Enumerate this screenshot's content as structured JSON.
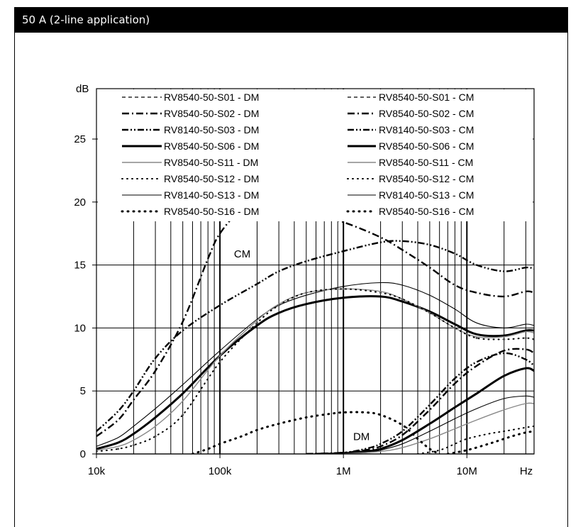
{
  "header": {
    "title": "50 A (2-line application)"
  },
  "chart_data": {
    "type": "line",
    "title": "50 A (2-line application)",
    "xlabel": "Hz",
    "ylabel": "dB",
    "xscale": "log",
    "xlim": [
      10000,
      35000000
    ],
    "ylim": [
      0,
      29
    ],
    "grid": true,
    "legend_position": "top",
    "x_tick_labels": [
      "10k",
      "100k",
      "1M",
      "10M"
    ],
    "x_tick_values": [
      10000,
      100000,
      1000000,
      10000000
    ],
    "y_tick_labels": [
      "0",
      "5",
      "10",
      "15",
      "20",
      "25"
    ],
    "y_tick_values": [
      0,
      5,
      10,
      15,
      20,
      25
    ],
    "annotations": [
      {
        "text": "CM",
        "x": 130000,
        "y": 15.6
      },
      {
        "text": "DM",
        "x": 1200000,
        "y": 1.1
      }
    ],
    "legend": [
      {
        "name": "RV8540-50-S01 - DM",
        "style": "dash"
      },
      {
        "name": "RV8540-50-S01 - CM",
        "style": "dash"
      },
      {
        "name": "RV8540-50-S02 - DM",
        "style": "dashdot"
      },
      {
        "name": "RV8540-50-S02 - CM",
        "style": "dashdot"
      },
      {
        "name": "RV8140-50-S03 - DM",
        "style": "dashdotdot"
      },
      {
        "name": "RV8140-50-S03 - CM",
        "style": "dashdotdot"
      },
      {
        "name": "RV8540-50-S06 - DM",
        "style": "thick"
      },
      {
        "name": "RV8540-50-S06 - CM",
        "style": "thick"
      },
      {
        "name": "RV8540-50-S11 - DM",
        "style": "gray"
      },
      {
        "name": "RV8540-50-S11 - CM",
        "style": "gray"
      },
      {
        "name": "RV8540-50-S12 - DM",
        "style": "dotted"
      },
      {
        "name": "RV8540-50-S12 - CM",
        "style": "dotted"
      },
      {
        "name": "RV8140-50-S13 - DM",
        "style": "thin"
      },
      {
        "name": "RV8140-50-S13 - CM",
        "style": "thin"
      },
      {
        "name": "RV8540-50-S16 - DM",
        "style": "bigdots"
      },
      {
        "name": "RV8540-50-S16 - CM",
        "style": "bigdots"
      }
    ],
    "series": [
      {
        "name": "RV8540-50-S02 - CM",
        "style": "dashdot",
        "x": [
          10000,
          15000,
          20000,
          30000,
          50000,
          80000,
          100000,
          150000,
          200000,
          300000,
          500000,
          1000000,
          2000000,
          3000000,
          5000000,
          8000000,
          12000000,
          20000000,
          30000000,
          35000000
        ],
        "y": [
          1.4,
          2.7,
          4.3,
          6.6,
          10.5,
          15.5,
          17.5,
          19.5,
          20.0,
          19.8,
          19.2,
          18.4,
          17.2,
          16.2,
          14.8,
          13.4,
          12.8,
          12.5,
          12.9,
          12.8
        ]
      },
      {
        "name": "RV8140-50-S03 - CM",
        "style": "dashdotdot",
        "x": [
          10000,
          15000,
          20000,
          30000,
          50000,
          100000,
          200000,
          300000,
          500000,
          1000000,
          2000000,
          3000000,
          5000000,
          8000000,
          12000000,
          20000000,
          30000000,
          35000000
        ],
        "y": [
          1.8,
          3.4,
          5.0,
          7.6,
          9.8,
          11.8,
          13.5,
          14.5,
          15.3,
          16.1,
          16.8,
          16.9,
          16.6,
          15.9,
          15.0,
          14.5,
          14.8,
          14.7
        ]
      },
      {
        "name": "RV8140-50-S13 - CM",
        "style": "thin",
        "x": [
          10000,
          15000,
          20000,
          30000,
          50000,
          100000,
          200000,
          300000,
          500000,
          1000000,
          2000000,
          3000000,
          5000000,
          8000000,
          12000000,
          20000000,
          30000000,
          35000000
        ],
        "y": [
          0.6,
          1.3,
          2.2,
          3.6,
          5.5,
          8.2,
          10.7,
          11.8,
          12.6,
          13.3,
          13.6,
          13.4,
          12.6,
          11.5,
          10.4,
          10.0,
          10.3,
          10.2
        ]
      },
      {
        "name": "RV8540-50-S06 - CM",
        "style": "thick",
        "x": [
          10000,
          15000,
          20000,
          30000,
          50000,
          100000,
          200000,
          300000,
          500000,
          1000000,
          2000000,
          3000000,
          5000000,
          8000000,
          12000000,
          20000000,
          30000000,
          35000000
        ],
        "y": [
          0.4,
          0.9,
          1.6,
          2.9,
          4.8,
          7.8,
          10.2,
          11.2,
          11.9,
          12.4,
          12.5,
          12.1,
          11.3,
          10.3,
          9.5,
          9.4,
          9.8,
          9.8
        ]
      },
      {
        "name": "RV8540-50-S11 - CM",
        "style": "gray",
        "x": [
          10000,
          15000,
          20000,
          30000,
          50000,
          100000,
          200000,
          300000,
          500000,
          1000000,
          2000000,
          3000000,
          5000000,
          8000000,
          12000000,
          20000000,
          30000000,
          35000000
        ],
        "y": [
          0.3,
          0.6,
          1.1,
          2.2,
          4.2,
          7.8,
          10.6,
          11.9,
          12.8,
          13.1,
          12.9,
          12.3,
          11.2,
          10.0,
          9.3,
          9.3,
          9.7,
          9.6
        ]
      },
      {
        "name": "RV8540-50-S12 - CM",
        "style": "dotted",
        "x": [
          10000,
          15000,
          20000,
          30000,
          50000,
          100000,
          200000,
          300000,
          500000,
          1000000,
          2000000,
          3000000,
          5000000,
          8000000,
          12000000,
          20000000,
          30000000,
          35000000
        ],
        "y": [
          0.2,
          0.4,
          0.7,
          1.4,
          3.1,
          7.3,
          10.4,
          11.8,
          12.8,
          13.1,
          12.8,
          12.3,
          11.2,
          10.0,
          9.2,
          9.1,
          9.2,
          9.1
        ]
      },
      {
        "name": "RV8140-50-S03 - DM",
        "style": "dashdotdot",
        "x": [
          500000,
          1000000,
          1500000,
          2000000,
          3000000,
          5000000,
          8000000,
          12000000,
          20000000,
          30000000,
          35000000
        ],
        "y": [
          0,
          0.1,
          0.4,
          0.8,
          1.8,
          3.9,
          6.0,
          7.3,
          8.0,
          7.5,
          7.0
        ]
      },
      {
        "name": "RV8540-50-S02 - DM",
        "style": "dashdot",
        "x": [
          500000,
          1000000,
          1500000,
          2000000,
          3000000,
          5000000,
          8000000,
          12000000,
          20000000,
          30000000,
          35000000
        ],
        "y": [
          0,
          0.1,
          0.3,
          0.6,
          1.5,
          3.5,
          5.6,
          7.0,
          8.2,
          8.3,
          8.0
        ]
      },
      {
        "name": "RV8540-50-S06 - DM",
        "style": "thick",
        "x": [
          600000,
          1000000,
          1500000,
          2000000,
          3000000,
          5000000,
          8000000,
          12000000,
          20000000,
          30000000,
          35000000
        ],
        "y": [
          0,
          0.05,
          0.2,
          0.4,
          1.1,
          2.4,
          3.7,
          4.8,
          6.2,
          6.8,
          6.6
        ]
      },
      {
        "name": "RV8140-50-S13 - DM",
        "style": "thin",
        "x": [
          800000,
          1500000,
          2000000,
          3000000,
          5000000,
          8000000,
          12000000,
          20000000,
          30000000,
          35000000
        ],
        "y": [
          0,
          0.1,
          0.3,
          0.8,
          1.8,
          2.8,
          3.6,
          4.4,
          4.6,
          4.5
        ]
      },
      {
        "name": "RV8540-50-S11 - DM",
        "style": "gray",
        "x": [
          1000000,
          2000000,
          3000000,
          5000000,
          8000000,
          12000000,
          20000000,
          30000000,
          35000000
        ],
        "y": [
          0,
          0.2,
          0.5,
          1.2,
          2.0,
          2.7,
          3.5,
          4.0,
          4.0
        ]
      },
      {
        "name": "RV8540-50-S16 - DM",
        "style": "bigdots",
        "x": [
          60000,
          80000,
          100000,
          150000,
          200000,
          300000,
          500000,
          800000,
          1000000,
          1500000,
          2000000,
          3000000,
          4000000,
          5000000,
          6000000
        ],
        "y": [
          0,
          0.4,
          0.8,
          1.4,
          1.9,
          2.4,
          2.9,
          3.2,
          3.3,
          3.3,
          3.1,
          2.3,
          1.2,
          0.4,
          0
        ]
      },
      {
        "name": "RV8540-50-S12 - DM",
        "style": "dotted",
        "x": [
          4000000,
          6000000,
          8000000,
          10000000,
          15000000,
          20000000,
          30000000,
          35000000
        ],
        "y": [
          0,
          0.3,
          0.8,
          1.2,
          1.6,
          1.8,
          2.1,
          2.2
        ]
      },
      {
        "name": "RV8540-50-S16 - CM",
        "style": "bigdots",
        "x": [
          7000000,
          10000000,
          15000000,
          20000000,
          25000000,
          30000000,
          35000000
        ],
        "y": [
          0,
          0.3,
          0.8,
          1.2,
          1.5,
          1.7,
          1.8
        ]
      }
    ]
  }
}
